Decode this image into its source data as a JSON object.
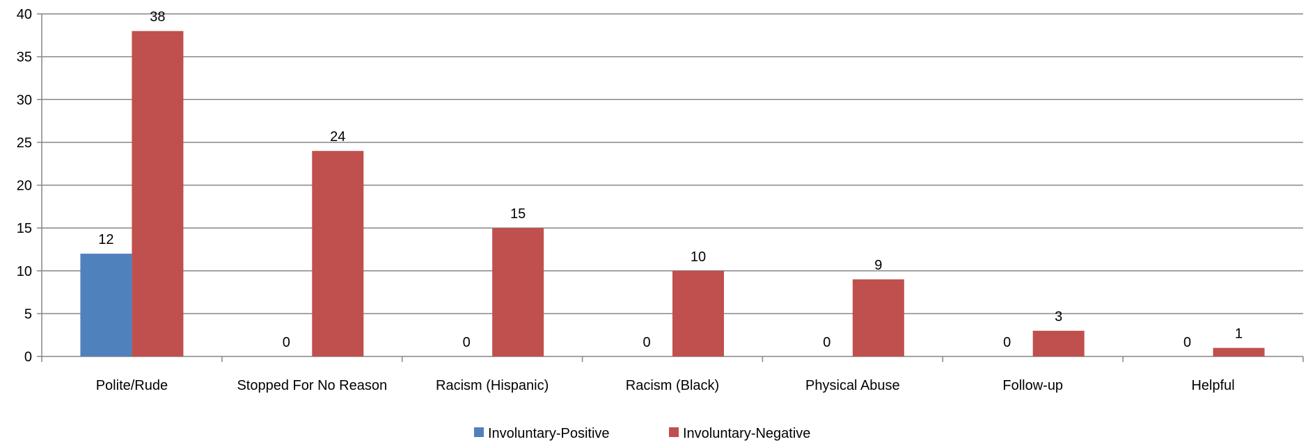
{
  "chart_data": {
    "type": "bar",
    "categories": [
      "Polite/Rude",
      "Stopped For No Reason",
      "Racism (Hispanic)",
      "Racism (Black)",
      "Physical Abuse",
      "Follow-up",
      "Helpful"
    ],
    "series": [
      {
        "name": "Involuntary-Positive",
        "color": "#4f81bd",
        "values": [
          12,
          0,
          0,
          0,
          0,
          0,
          0
        ]
      },
      {
        "name": "Involuntary-Negative",
        "color": "#c0504d",
        "values": [
          38,
          24,
          15,
          10,
          9,
          3,
          1
        ]
      }
    ],
    "ylim": [
      0,
      40
    ],
    "yticks": [
      0,
      5,
      10,
      15,
      20,
      25,
      30,
      35,
      40
    ],
    "grid": true,
    "legend_position": "bottom-center",
    "data_labels": true
  }
}
